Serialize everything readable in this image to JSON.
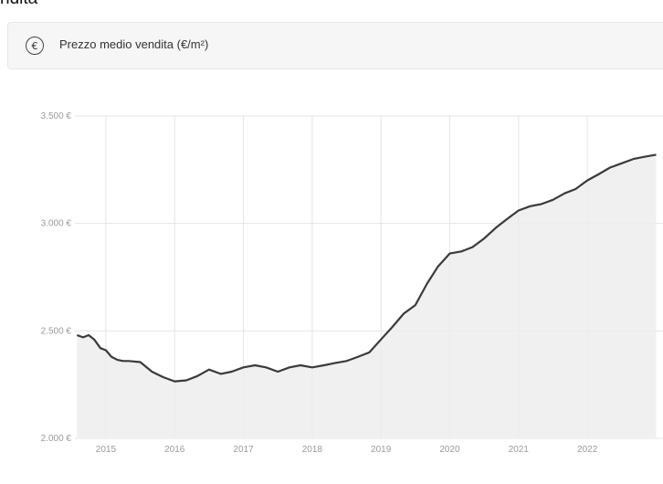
{
  "page": {
    "heading": "ndita"
  },
  "metric": {
    "label": "Prezzo medio vendita (€/m²)",
    "icon": "euro-circle-icon",
    "icon_glyph": "€"
  },
  "chart_data": {
    "type": "area",
    "title": "",
    "xlabel": "",
    "ylabel": "",
    "ylim": [
      2000,
      3500
    ],
    "xlim": [
      2014.55,
      2023.1
    ],
    "grid": true,
    "colors": {
      "line": "#3a3a3a",
      "fill": "#ececec",
      "grid": "#e4e4e4"
    },
    "y_ticks": [
      {
        "value": 3500,
        "label": "3.500 €"
      },
      {
        "value": 3000,
        "label": "3.000 €"
      },
      {
        "value": 2500,
        "label": "2.500 €"
      },
      {
        "value": 2000,
        "label": "2.000 €"
      }
    ],
    "x_ticks": [
      {
        "value": 2015,
        "label": "2015"
      },
      {
        "value": 2016,
        "label": "2016"
      },
      {
        "value": 2017,
        "label": "2017"
      },
      {
        "value": 2018,
        "label": "2018"
      },
      {
        "value": 2019,
        "label": "2019"
      },
      {
        "value": 2020,
        "label": "2020"
      },
      {
        "value": 2021,
        "label": "2021"
      },
      {
        "value": 2022,
        "label": "2022"
      }
    ],
    "series": [
      {
        "x": [
          2014.58,
          2014.67,
          2014.75,
          2014.83,
          2014.92,
          2015.0,
          2015.08,
          2015.17,
          2015.25,
          2015.33,
          2015.5,
          2015.67,
          2015.83,
          2016.0,
          2016.17,
          2016.33,
          2016.5,
          2016.67,
          2016.83,
          2017.0,
          2017.17,
          2017.33,
          2017.5,
          2017.67,
          2017.83,
          2018.0,
          2018.17,
          2018.33,
          2018.5,
          2018.67,
          2018.83,
          2019.0,
          2019.17,
          2019.33,
          2019.5,
          2019.67,
          2019.83,
          2020.0,
          2020.17,
          2020.33,
          2020.5,
          2020.67,
          2020.83,
          2021.0,
          2021.17,
          2021.33,
          2021.5,
          2021.67,
          2021.83,
          2022.0,
          2022.17,
          2022.33,
          2022.5,
          2022.67,
          2022.83,
          2023.0
        ],
        "values": [
          2480,
          2470,
          2480,
          2460,
          2420,
          2410,
          2380,
          2365,
          2360,
          2360,
          2355,
          2310,
          2285,
          2265,
          2270,
          2290,
          2320,
          2300,
          2310,
          2330,
          2340,
          2330,
          2310,
          2330,
          2340,
          2330,
          2340,
          2350,
          2360,
          2380,
          2400,
          2460,
          2520,
          2580,
          2620,
          2720,
          2800,
          2860,
          2870,
          2890,
          2930,
          2980,
          3020,
          3060,
          3080,
          3090,
          3110,
          3140,
          3160,
          3200,
          3230,
          3260,
          3280,
          3300,
          3310,
          3320
        ]
      }
    ]
  }
}
